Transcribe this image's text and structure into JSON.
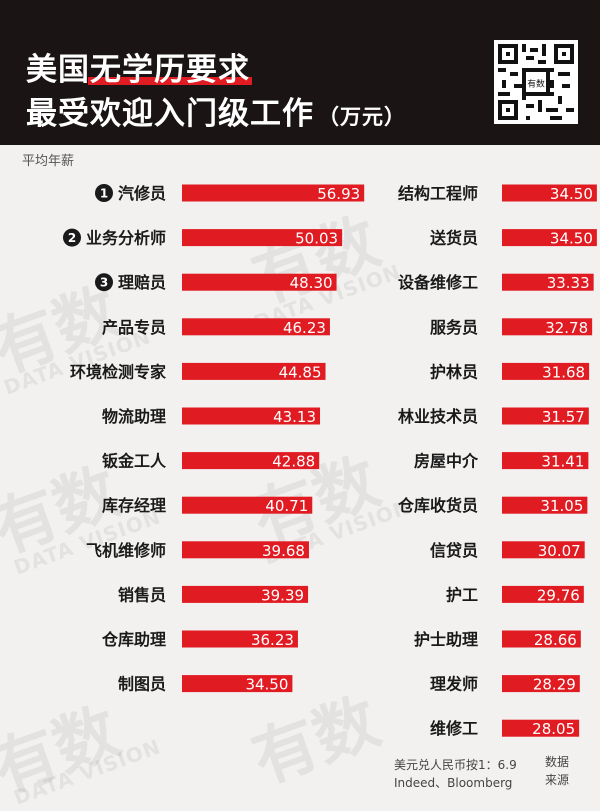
{
  "header": {
    "title_line1_plain": "美国",
    "title_line1_highlight": "无学历要求",
    "title_line2": "最受欢迎入门级工作",
    "title_unit": "（万元）"
  },
  "watermark": {
    "text": "有数",
    "subtext": "DATA VISION"
  },
  "chart_data": {
    "type": "bar",
    "orientation": "horizontal",
    "ylabel": "平均年薪",
    "unit": "万元",
    "bar_color": "#e11b22",
    "groups": [
      {
        "column": "left",
        "categories": [
          "汽修员",
          "业务分析师",
          "理赔员",
          "产品专员",
          "环境检测专家",
          "物流助理",
          "钣金工人",
          "库存经理",
          "飞机维修师",
          "销售员",
          "仓库助理",
          "制图员"
        ],
        "values": [
          56.93,
          50.03,
          48.3,
          46.23,
          44.85,
          43.13,
          42.88,
          40.71,
          39.68,
          39.39,
          36.23,
          34.5
        ],
        "labels": [
          "56.93",
          "50.03",
          "48.30",
          "46.23",
          "44.85",
          "43.13",
          "42.88",
          "40.71",
          "39.68",
          "39.39",
          "36.23",
          "34.50"
        ],
        "ranks": [
          "1",
          "2",
          "3"
        ]
      },
      {
        "column": "right",
        "categories": [
          "结构工程师",
          "送货员",
          "设备维修工",
          "服务员",
          "护林员",
          "林业技术员",
          "房屋中介",
          "仓库收货员",
          "信贷员",
          "护工",
          "护士助理",
          "理发师",
          "维修工"
        ],
        "values": [
          34.5,
          34.5,
          33.33,
          32.78,
          31.68,
          31.57,
          31.41,
          31.05,
          30.07,
          29.76,
          28.66,
          28.29,
          28.05
        ],
        "labels": [
          "34.50",
          "34.50",
          "33.33",
          "32.78",
          "31.68",
          "31.57",
          "31.41",
          "31.05",
          "30.07",
          "29.76",
          "28.66",
          "28.29",
          "28.05"
        ]
      }
    ]
  },
  "footer": {
    "rate": "美元兑人民币按1：6.9",
    "source": "Indeed、Bloomberg",
    "side_top": "数据",
    "side_bottom": "来源"
  }
}
